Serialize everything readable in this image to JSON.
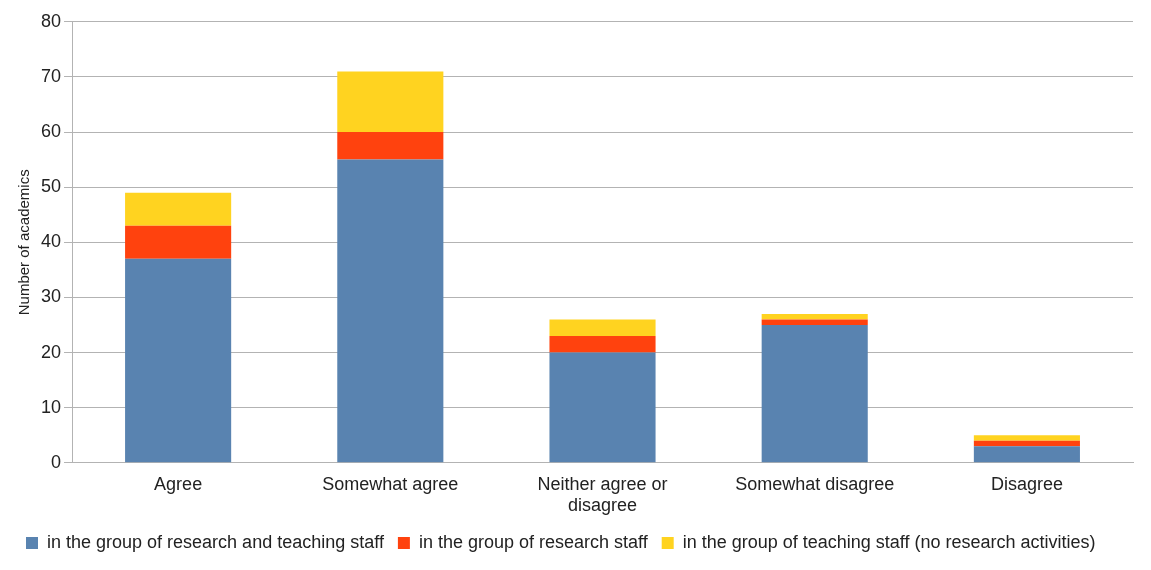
{
  "chart_data": {
    "type": "bar",
    "stacked": true,
    "ylabel": "Number of academics",
    "categories": [
      "Agree",
      "Somewhat agree",
      "Neither agree or disagree",
      "Somewhat disagree",
      "Disagree"
    ],
    "series": [
      {
        "name": "in the group of research and teaching staff",
        "color": "#5983b0",
        "values": [
          37,
          55,
          20,
          25,
          3
        ]
      },
      {
        "name": "in the group of research staff",
        "color": "#ff420e",
        "values": [
          6,
          5,
          3,
          1,
          1
        ]
      },
      {
        "name": "in the group of teaching staff (no research activities)",
        "color": "#ffd320",
        "values": [
          6,
          11,
          3,
          1,
          1
        ]
      }
    ],
    "ylim": [
      0,
      80
    ],
    "yticks": [
      0,
      10,
      20,
      30,
      40,
      50,
      60,
      70,
      80
    ],
    "grid": "y",
    "legend": "bottom"
  }
}
